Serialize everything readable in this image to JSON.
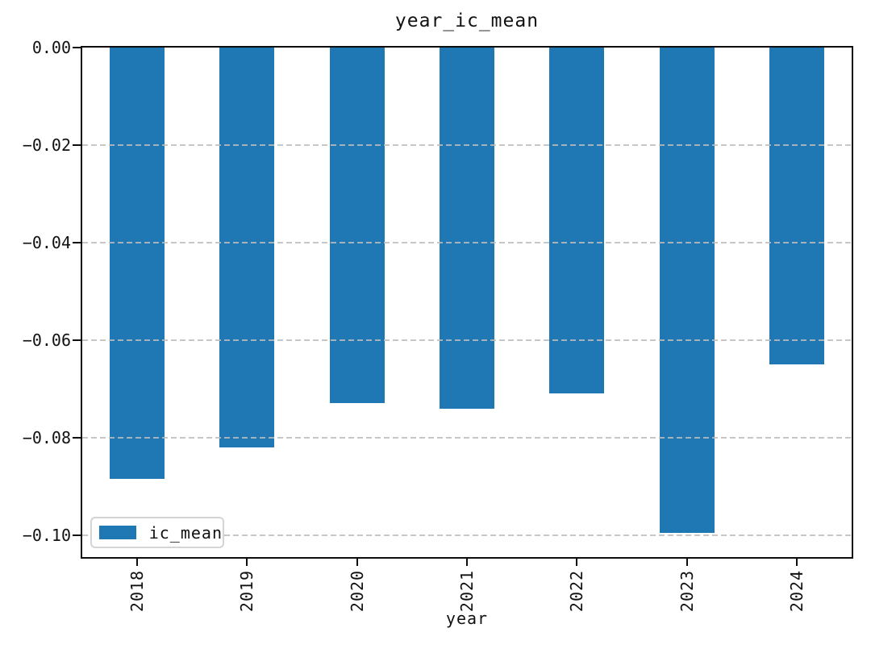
{
  "title": "year_ic_mean",
  "xlabel": "year",
  "legend": {
    "label": "ic_mean",
    "swatch_color": "#1f77b4"
  },
  "colors": {
    "bar": "#1f77b4",
    "grid": "#bdbdbd",
    "spine": "#0d0d0d",
    "text": "#111111",
    "background": "#ffffff"
  },
  "chart_data": {
    "type": "bar",
    "title": "year_ic_mean",
    "xlabel": "year",
    "ylabel": "",
    "categories": [
      "2018",
      "2019",
      "2020",
      "2021",
      "2022",
      "2023",
      "2024"
    ],
    "series": [
      {
        "name": "ic_mean",
        "values": [
          -0.0885,
          -0.082,
          -0.073,
          -0.074,
          -0.071,
          -0.0995,
          -0.065
        ]
      }
    ],
    "ylim": [
      -0.1045,
      0
    ],
    "yticks": [
      0.0,
      -0.02,
      -0.04,
      -0.06,
      -0.08,
      -0.1
    ],
    "ytick_labels": [
      "0.00",
      "−0.02",
      "−0.04",
      "−0.06",
      "−0.08",
      "−0.10"
    ],
    "xtick_label_rotation_deg": 90,
    "grid": "horizontal-dashed",
    "grid_over_bars": true,
    "legend_position": "lower-left",
    "bar_width_fraction": 0.5
  }
}
